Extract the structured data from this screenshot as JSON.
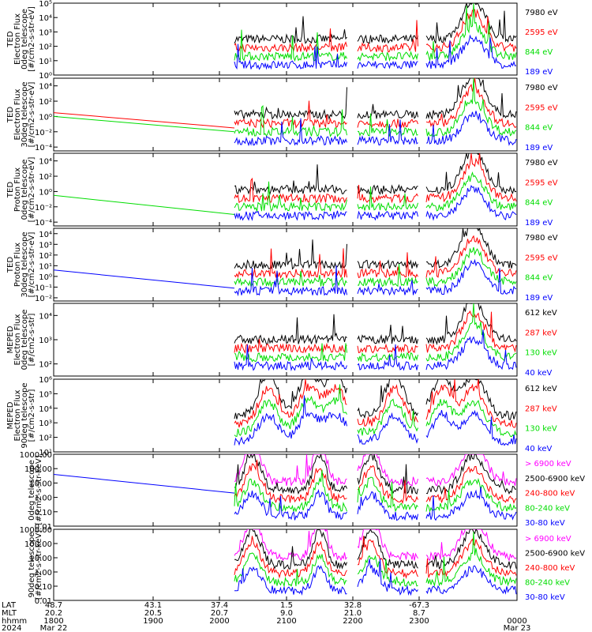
{
  "chart_data": {
    "type": "line",
    "x_ticks": [
      {
        "time": "1800",
        "date": "Mar 22",
        "lat": "48.7",
        "mlt": "20.2"
      },
      {
        "time": "1900",
        "date": "",
        "lat": "43.1",
        "mlt": "20.5"
      },
      {
        "time": "2000",
        "date": "",
        "lat": "37.4",
        "mlt": "20.7"
      },
      {
        "time": "2100",
        "date": "",
        "lat": "1.5",
        "mlt": "9.0"
      },
      {
        "time": "2200",
        "date": "",
        "lat": "32.8",
        "mlt": "21.0"
      },
      {
        "time": "2300",
        "date": "",
        "lat": "-67.3",
        "mlt": "8.7"
      },
      {
        "time": "0000",
        "date": "Mar 23",
        "lat": "",
        "mlt": ""
      }
    ],
    "x_row_labels": [
      "LAT",
      "MLT",
      "hhmm",
      "2024"
    ],
    "panels": [
      {
        "id": "ted-e-0",
        "ylabel": [
          "TED",
          "Electron Flux",
          "0deg telescope",
          "[#/cm2-s-str-eV]"
        ],
        "yticks": [
          {
            "v": 0,
            "l": "10⁰"
          },
          {
            "v": 1,
            "l": "10¹"
          },
          {
            "v": 2,
            "l": "10²"
          },
          {
            "v": 3,
            "l": "10³"
          },
          {
            "v": 4,
            "l": "10⁴"
          },
          {
            "v": 5,
            "l": "10⁵"
          }
        ],
        "ylim": [
          0,
          5
        ],
        "series": [
          {
            "name": "7980 eV",
            "color": "#000000"
          },
          {
            "name": "2595 eV",
            "color": "#ff0000"
          },
          {
            "name": "844 eV",
            "color": "#00dd00"
          },
          {
            "name": "189 eV",
            "color": "#0000ff"
          }
        ]
      },
      {
        "id": "ted-e-30",
        "ylabel": [
          "TED",
          "Electron Flux",
          "30deg telescope",
          "[#/cm2-s-str-eV]"
        ],
        "yticks": [
          {
            "v": -4,
            "l": "10⁻⁴"
          },
          {
            "v": -2,
            "l": "10⁻²"
          },
          {
            "v": 0,
            "l": "10⁰"
          },
          {
            "v": 2,
            "l": "10²"
          },
          {
            "v": 4,
            "l": "10⁴"
          }
        ],
        "ylim": [
          -4.5,
          5
        ],
        "series": [
          {
            "name": "7980 eV",
            "color": "#000000"
          },
          {
            "name": "2595 eV",
            "color": "#ff0000"
          },
          {
            "name": "844 eV",
            "color": "#00dd00"
          },
          {
            "name": "189 eV",
            "color": "#0000ff"
          }
        ]
      },
      {
        "id": "ted-p-0",
        "ylabel": [
          "TED",
          "Proton Flux",
          "0deg telescope",
          "[#/cm2-s-str-eV]"
        ],
        "yticks": [
          {
            "v": -4,
            "l": "10⁻⁴"
          },
          {
            "v": -2,
            "l": "10⁻²"
          },
          {
            "v": 0,
            "l": "10⁰"
          },
          {
            "v": 2,
            "l": "10²"
          },
          {
            "v": 4,
            "l": "10⁴"
          }
        ],
        "ylim": [
          -4.5,
          5
        ],
        "series": [
          {
            "name": "7980 eV",
            "color": "#000000"
          },
          {
            "name": "2595 eV",
            "color": "#ff0000"
          },
          {
            "name": "844 eV",
            "color": "#00dd00"
          },
          {
            "name": "189 eV",
            "color": "#0000ff"
          }
        ]
      },
      {
        "id": "ted-p-30",
        "ylabel": [
          "TED",
          "Proton Flux",
          "30deg telescope",
          "[#/cm2-s-str-eV]"
        ],
        "yticks": [
          {
            "v": -2,
            "l": "10⁻²"
          },
          {
            "v": -1,
            "l": "10⁻¹"
          },
          {
            "v": 0,
            "l": "10⁰"
          },
          {
            "v": 1,
            "l": "10¹"
          },
          {
            "v": 2,
            "l": "10²"
          },
          {
            "v": 3,
            "l": "10³"
          },
          {
            "v": 4,
            "l": "10⁴"
          }
        ],
        "ylim": [
          -2.3,
          4.5
        ],
        "series": [
          {
            "name": "7980 eV",
            "color": "#000000"
          },
          {
            "name": "2595 eV",
            "color": "#ff0000"
          },
          {
            "name": "844 eV",
            "color": "#00dd00"
          },
          {
            "name": "189 eV",
            "color": "#0000ff"
          }
        ]
      },
      {
        "id": "meped-e-0",
        "ylabel": [
          "MEPED",
          "Electron Flux",
          "0deg telescope",
          "[#/cm2-s-str]"
        ],
        "yticks": [
          {
            "v": 2,
            "l": "10²"
          },
          {
            "v": 3,
            "l": "10³"
          },
          {
            "v": 4,
            "l": "10⁴"
          }
        ],
        "ylim": [
          1.5,
          4.5
        ],
        "series": [
          {
            "name": "612 keV",
            "color": "#000000"
          },
          {
            "name": "287 keV",
            "color": "#ff0000"
          },
          {
            "name": "130 keV",
            "color": "#00dd00"
          },
          {
            "name": "40 keV",
            "color": "#0000ff"
          }
        ]
      },
      {
        "id": "meped-e-90",
        "ylabel": [
          "MEPED",
          "Electron Flux",
          "90deg telescope",
          "[#/cm2-s-str]"
        ],
        "yticks": [
          {
            "v": 1,
            "l": "10¹"
          },
          {
            "v": 2,
            "l": "10²"
          },
          {
            "v": 3,
            "l": "10³"
          },
          {
            "v": 4,
            "l": "10⁴"
          },
          {
            "v": 5,
            "l": "10⁵"
          },
          {
            "v": 6,
            "l": "10⁶"
          }
        ],
        "ylim": [
          1,
          6
        ],
        "series": [
          {
            "name": "612 keV",
            "color": "#000000"
          },
          {
            "name": "287 keV",
            "color": "#ff0000"
          },
          {
            "name": "130 keV",
            "color": "#00dd00"
          },
          {
            "name": "40 keV",
            "color": "#0000ff"
          }
        ]
      },
      {
        "id": "mp-0",
        "ylabel": [
          "0deg telescope",
          "[#/cm2-s-str-keV]"
        ],
        "yticks": [
          {
            "v": -2,
            "l": "0.01"
          },
          {
            "v": -1,
            "l": "0.10"
          },
          {
            "v": 0,
            "l": "1.00"
          },
          {
            "v": 1,
            "l": "10.00"
          },
          {
            "v": 2,
            "l": "100.00"
          },
          {
            "v": 3,
            "l": "1000.00"
          }
        ],
        "ylim": [
          -2,
          3
        ],
        "series": [
          {
            "name": "> 6900 keV",
            "color": "#ff00ff"
          },
          {
            "name": "2500-6900 keV",
            "color": "#000000"
          },
          {
            "name": "240-800 keV",
            "color": "#ff0000"
          },
          {
            "name": "80-240 keV",
            "color": "#00dd00"
          },
          {
            "name": "30-80 keV",
            "color": "#0000ff"
          }
        ]
      },
      {
        "id": "mp-90",
        "ylabel": [
          "90deg telescope",
          "[#/cm2-s-str-keV]"
        ],
        "yticks": [
          {
            "v": -2,
            "l": "0.01"
          },
          {
            "v": -1,
            "l": "0.10"
          },
          {
            "v": 0,
            "l": "1.00"
          },
          {
            "v": 1,
            "l": "10.00"
          },
          {
            "v": 2,
            "l": "100.00"
          },
          {
            "v": 3,
            "l": "1000.00"
          }
        ],
        "ylim": [
          -2,
          3
        ],
        "series": [
          {
            "name": "> 6900 keV",
            "color": "#ff00ff"
          },
          {
            "name": "2500-6900 keV",
            "color": "#000000"
          },
          {
            "name": "240-800 keV",
            "color": "#ff0000"
          },
          {
            "name": "80-240 keV",
            "color": "#00dd00"
          },
          {
            "name": "30-80 keV",
            "color": "#0000ff"
          }
        ]
      }
    ]
  }
}
